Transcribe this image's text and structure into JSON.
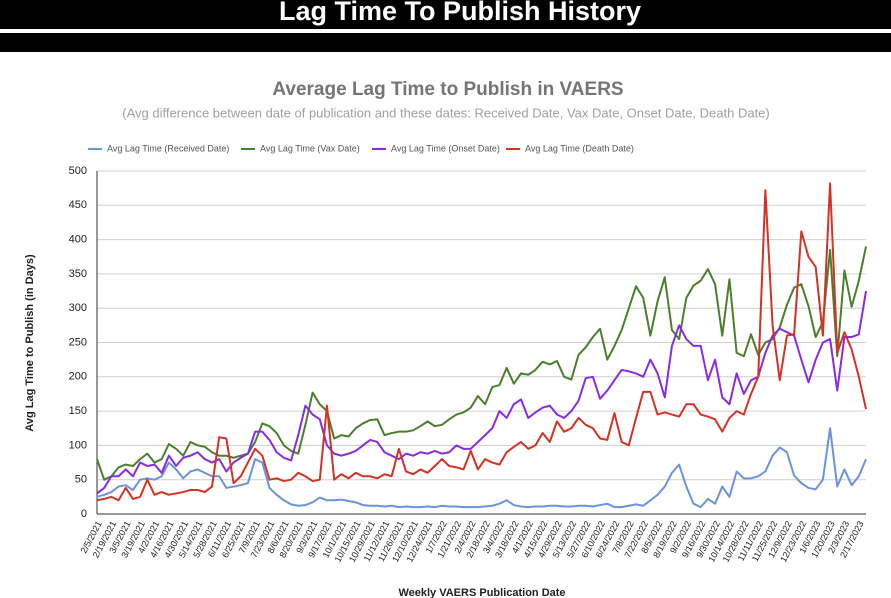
{
  "header": {
    "title": "Lag Time To Publish History"
  },
  "chart_data": {
    "type": "line",
    "title": "Average Lag Time to Publish in VAERS",
    "subtitle": "(Avg difference between date of publication and these dates: Received Date, Vax Date, Onset Date, Death Date)",
    "y_label": "Avg Lag Time to Publish (in Days)",
    "x_label": "Weekly VAERS Publication Date",
    "ylim": [
      0,
      500
    ],
    "yticks": [
      0,
      50,
      100,
      150,
      200,
      250,
      300,
      350,
      400,
      450,
      500
    ],
    "grid": true,
    "legend": "top",
    "categories": [
      "2/5/2021",
      null,
      "2/19/2021",
      null,
      "3/5/2021",
      null,
      "3/19/2021",
      null,
      "4/2/2021",
      null,
      "4/16/2021",
      null,
      "4/30/2021",
      null,
      "5/14/2021",
      null,
      "5/28/2021",
      null,
      "6/11/2021",
      null,
      "6/25/2021",
      null,
      "7/9/2021",
      null,
      "7/23/2021",
      null,
      "8/6/2021",
      null,
      "8/20/2021",
      null,
      "9/3/2021",
      null,
      "9/17/2021",
      null,
      "10/1/2021",
      null,
      "10/15/2021",
      null,
      "10/29/2021",
      null,
      "11/12/2021",
      null,
      "11/26/2021",
      null,
      "12/10/2021",
      null,
      "12/24/2021",
      null,
      "1/7/2022",
      null,
      "1/21/2022",
      null,
      "2/4/2022",
      null,
      "2/18/2022",
      null,
      "3/4/2022",
      null,
      "3/18/2022",
      null,
      "4/1/2022",
      null,
      "4/15/2022",
      null,
      "4/29/2022",
      null,
      "5/13/2022",
      null,
      "5/27/2022",
      null,
      "6/10/2022",
      null,
      "6/24/2022",
      null,
      "7/8/2022",
      null,
      "7/22/2022",
      null,
      "8/5/2022",
      null,
      "8/19/2022",
      null,
      "9/2/2022",
      null,
      "9/16/2022",
      null,
      "9/30/2022",
      null,
      "10/14/2022",
      null,
      "10/28/2022",
      null,
      "11/11/2022",
      null,
      "11/25/2022",
      null,
      "12/9/2022",
      null,
      "12/23/2022",
      null,
      "1/6/2023",
      null,
      "1/20/2023",
      null,
      "2/3/2023",
      null,
      "2/17/2023",
      null
    ],
    "series": [
      {
        "name": "Avg Lag Time (Received Date)",
        "color": "#6a94dc",
        "values": [
          25,
          28,
          32,
          40,
          42,
          35,
          50,
          52,
          50,
          55,
          75,
          65,
          52,
          62,
          65,
          60,
          55,
          55,
          38,
          40,
          42,
          45,
          80,
          75,
          38,
          28,
          20,
          14,
          12,
          13,
          17,
          24,
          20,
          20,
          21,
          19,
          17,
          13,
          12,
          12,
          11,
          12,
          10,
          11,
          10,
          10,
          11,
          10,
          12,
          11,
          11,
          10,
          10,
          10,
          11,
          12,
          15,
          20,
          13,
          11,
          10,
          11,
          11,
          12,
          12,
          11,
          11,
          12,
          12,
          11,
          13,
          15,
          10,
          10,
          12,
          14,
          12,
          20,
          28,
          40,
          60,
          72,
          40,
          15,
          10,
          22,
          15,
          40,
          25,
          62,
          52,
          52,
          55,
          62,
          85,
          97,
          90,
          56,
          45,
          38,
          36,
          50,
          125,
          40,
          65,
          42,
          55,
          80
        ]
      },
      {
        "name": "Avg Lag Time (Vax Date)",
        "color": "#4a7f2c",
        "values": [
          80,
          50,
          55,
          68,
          72,
          70,
          80,
          88,
          75,
          80,
          102,
          95,
          85,
          105,
          100,
          98,
          90,
          85,
          85,
          82,
          85,
          88,
          105,
          132,
          128,
          118,
          100,
          92,
          88,
          130,
          177,
          160,
          150,
          110,
          115,
          113,
          125,
          132,
          137,
          138,
          115,
          118,
          120,
          120,
          122,
          128,
          135,
          128,
          130,
          138,
          145,
          148,
          155,
          172,
          160,
          185,
          188,
          213,
          190,
          205,
          203,
          210,
          222,
          218,
          223,
          200,
          196,
          232,
          243,
          258,
          270,
          225,
          245,
          268,
          300,
          332,
          315,
          260,
          310,
          345,
          268,
          255,
          315,
          333,
          340,
          357,
          335,
          260,
          342,
          235,
          230,
          262,
          232,
          250,
          255,
          272,
          305,
          330,
          335,
          303,
          258,
          280,
          385,
          230,
          355,
          302,
          340,
          390
        ]
      },
      {
        "name": "Avg Lag Time (Onset Date)",
        "color": "#8a2be2",
        "values": [
          30,
          38,
          55,
          55,
          65,
          55,
          75,
          70,
          72,
          60,
          85,
          70,
          82,
          85,
          90,
          80,
          75,
          80,
          62,
          75,
          82,
          88,
          120,
          120,
          108,
          90,
          82,
          78,
          115,
          158,
          145,
          138,
          100,
          88,
          85,
          88,
          92,
          100,
          108,
          105,
          90,
          85,
          80,
          88,
          85,
          90,
          88,
          92,
          88,
          90,
          100,
          95,
          95,
          105,
          115,
          125,
          150,
          140,
          160,
          167,
          140,
          148,
          155,
          158,
          145,
          140,
          150,
          165,
          198,
          200,
          168,
          180,
          195,
          210,
          208,
          205,
          200,
          225,
          205,
          170,
          245,
          275,
          255,
          245,
          245,
          195,
          225,
          170,
          160,
          205,
          175,
          195,
          200,
          235,
          260,
          270,
          265,
          260,
          225,
          192,
          225,
          250,
          255,
          180,
          258,
          258,
          262,
          325
        ]
      },
      {
        "name": "Avg Lag Time (Death Date)",
        "color": "#d43224",
        "values": [
          20,
          22,
          25,
          20,
          38,
          22,
          25,
          50,
          28,
          32,
          28,
          30,
          32,
          35,
          35,
          32,
          40,
          112,
          110,
          45,
          55,
          75,
          95,
          85,
          50,
          52,
          48,
          50,
          60,
          55,
          48,
          50,
          158,
          50,
          58,
          52,
          60,
          55,
          55,
          52,
          58,
          55,
          95,
          62,
          58,
          65,
          60,
          70,
          80,
          70,
          68,
          65,
          92,
          65,
          80,
          75,
          72,
          90,
          98,
          105,
          95,
          100,
          118,
          105,
          135,
          120,
          125,
          140,
          130,
          125,
          110,
          108,
          147,
          105,
          100,
          140,
          178,
          178,
          145,
          148,
          145,
          142,
          160,
          160,
          145,
          142,
          138,
          120,
          140,
          150,
          145,
          175,
          200,
          472,
          275,
          195,
          260,
          262,
          412,
          375,
          360,
          260,
          482,
          235,
          265,
          240,
          200,
          153
        ]
      }
    ]
  }
}
